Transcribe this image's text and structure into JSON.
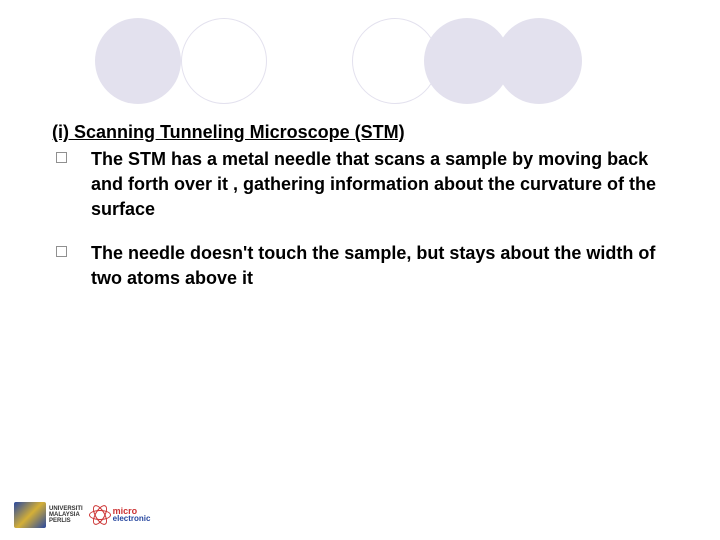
{
  "decoration": {
    "circle_fill_color": "#e3e1ee",
    "circle_outline_color": "#e3e1ee",
    "circles": [
      {
        "style": "filled"
      },
      {
        "style": "outlined"
      },
      {
        "style": "outlined",
        "gap": true
      },
      {
        "style": "filled",
        "overlap": true
      },
      {
        "style": "filled",
        "overlap": true
      }
    ]
  },
  "heading": "(i) Scanning Tunneling Microscope (STM)",
  "bullets": [
    "The STM has a metal needle that scans a sample by moving back and forth over it , gathering information about the curvature of the surface",
    "The needle doesn't touch the sample, but stays about the width of two atoms above it"
  ],
  "footer": {
    "unimap": {
      "line1": "UNIVERSITI",
      "line2": "MALAYSIA",
      "line3": "PERLIS"
    },
    "micro": {
      "line1": "micro",
      "line2": "electronic"
    }
  },
  "colors": {
    "text": "#000000",
    "bullet_marker_border": "#909090",
    "background": "#ffffff"
  },
  "typography": {
    "heading_fontsize": 18,
    "body_fontsize": 18,
    "font_family": "Arial"
  }
}
